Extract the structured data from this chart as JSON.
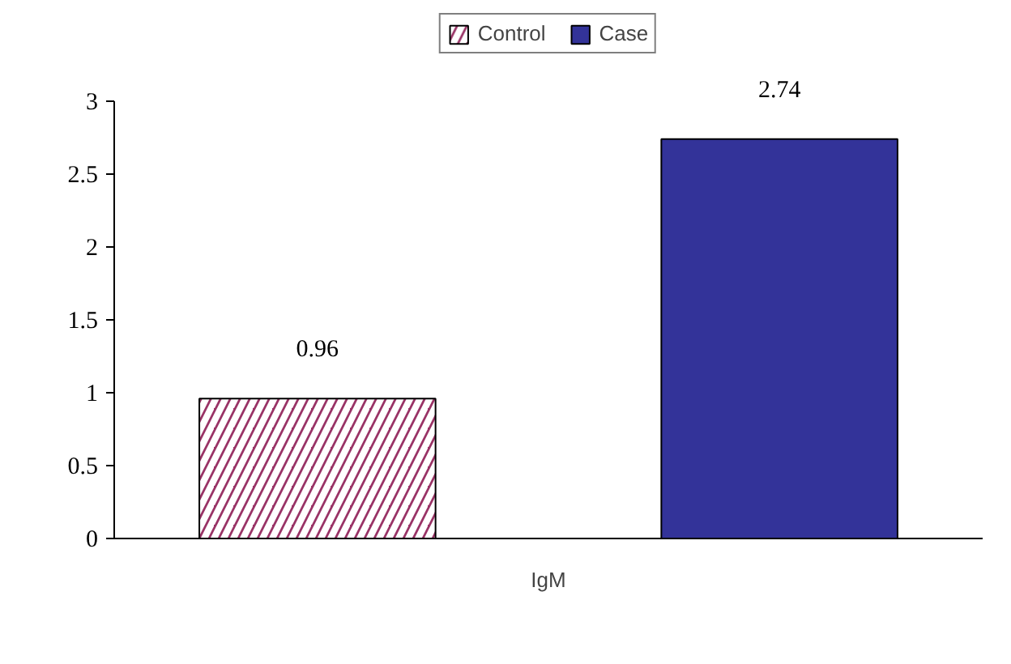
{
  "chart_data": {
    "type": "bar",
    "categories": [
      "IgM"
    ],
    "series": [
      {
        "name": "Control",
        "color": "#993366",
        "values": [
          0.96
        ]
      },
      {
        "name": "Case",
        "color": "#333399",
        "values": [
          2.74
        ]
      }
    ],
    "ylim": [
      0,
      3
    ],
    "yticks": [
      0,
      0.5,
      1,
      1.5,
      2,
      2.5,
      3
    ],
    "data_labels": true,
    "grid": false,
    "legend": "top"
  }
}
